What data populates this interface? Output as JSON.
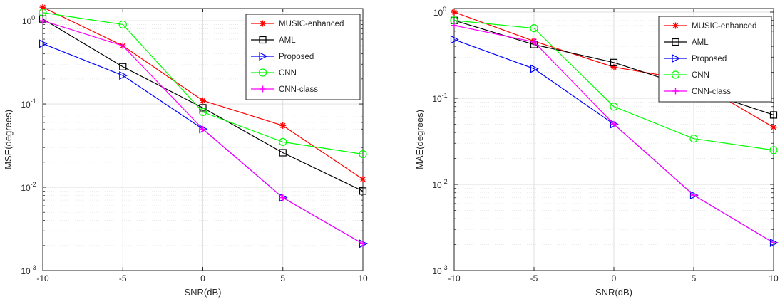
{
  "chart_data": [
    {
      "type": "line",
      "title": "",
      "xlabel": "SNR(dB)",
      "ylabel": "MSE(degrees)",
      "xscale": "linear",
      "yscale": "log",
      "xlim": [
        -10,
        10
      ],
      "ylim": [
        0.001,
        1.4
      ],
      "x": [
        -10,
        -5,
        0,
        5,
        10
      ],
      "xticks": [
        -10,
        -5,
        0,
        5,
        10
      ],
      "xtick_labels": [
        "-10",
        "-5",
        "0",
        "5",
        "10"
      ],
      "yticks": [
        {
          "value": 0.001,
          "base": "10",
          "exp": "-3"
        },
        {
          "value": 0.01,
          "base": "10",
          "exp": "-2"
        },
        {
          "value": 0.1,
          "base": "10",
          "exp": "-1"
        },
        {
          "value": 1,
          "base": "10",
          "exp": "0"
        }
      ],
      "grid": true,
      "legend_position": "top-right",
      "series": [
        {
          "name": "MUSIC-enhanced",
          "color": "#ff0000",
          "marker": "asterisk",
          "values": [
            1.45,
            0.5,
            0.11,
            0.055,
            0.0125
          ]
        },
        {
          "name": "AML",
          "color": "#000000",
          "marker": "square",
          "values": [
            1.05,
            0.28,
            0.09,
            0.026,
            0.009
          ]
        },
        {
          "name": "Proposed",
          "color": "#0000ff",
          "marker": "triangle-right",
          "values": [
            0.53,
            0.22,
            0.05,
            0.0075,
            0.0021
          ]
        },
        {
          "name": "CNN",
          "color": "#00ff00",
          "marker": "circle",
          "values": [
            1.25,
            0.9,
            0.08,
            0.035,
            0.025
          ]
        },
        {
          "name": "CNN-class",
          "color": "#ff00ff",
          "marker": "plus",
          "values": [
            1.0,
            0.5,
            0.05,
            0.0075,
            0.0021
          ]
        }
      ]
    },
    {
      "type": "line",
      "title": "",
      "xlabel": "SNR(dB)",
      "ylabel": "MAE(degrees)",
      "xscale": "linear",
      "yscale": "log",
      "xlim": [
        -10,
        10
      ],
      "ylim": [
        0.001,
        1.1
      ],
      "x": [
        -10,
        -5,
        0,
        5,
        10
      ],
      "xticks": [
        -10,
        -5,
        0,
        5,
        10
      ],
      "xtick_labels": [
        "-10",
        "-5",
        "0",
        "5",
        "10"
      ],
      "yticks": [
        {
          "value": 0.001,
          "base": "10",
          "exp": "-3"
        },
        {
          "value": 0.01,
          "base": "10",
          "exp": "-2"
        },
        {
          "value": 0.1,
          "base": "10",
          "exp": "-1"
        },
        {
          "value": 1,
          "base": "10",
          "exp": "0"
        }
      ],
      "grid": true,
      "legend_position": "top-right",
      "series": [
        {
          "name": "MUSIC-enhanced",
          "color": "#ff0000",
          "marker": "asterisk",
          "values": [
            1.0,
            0.46,
            0.23,
            0.16,
            0.046
          ]
        },
        {
          "name": "AML",
          "color": "#000000",
          "marker": "square",
          "values": [
            0.8,
            0.42,
            0.26,
            0.13,
            0.064
          ]
        },
        {
          "name": "Proposed",
          "color": "#0000ff",
          "marker": "triangle-right",
          "values": [
            0.48,
            0.22,
            0.05,
            0.0075,
            0.0021
          ]
        },
        {
          "name": "CNN",
          "color": "#00ff00",
          "marker": "circle",
          "values": [
            0.8,
            0.65,
            0.08,
            0.034,
            0.025
          ]
        },
        {
          "name": "CNN-class",
          "color": "#ff00ff",
          "marker": "plus",
          "values": [
            0.7,
            0.45,
            0.05,
            0.0075,
            0.0021
          ]
        }
      ]
    }
  ]
}
